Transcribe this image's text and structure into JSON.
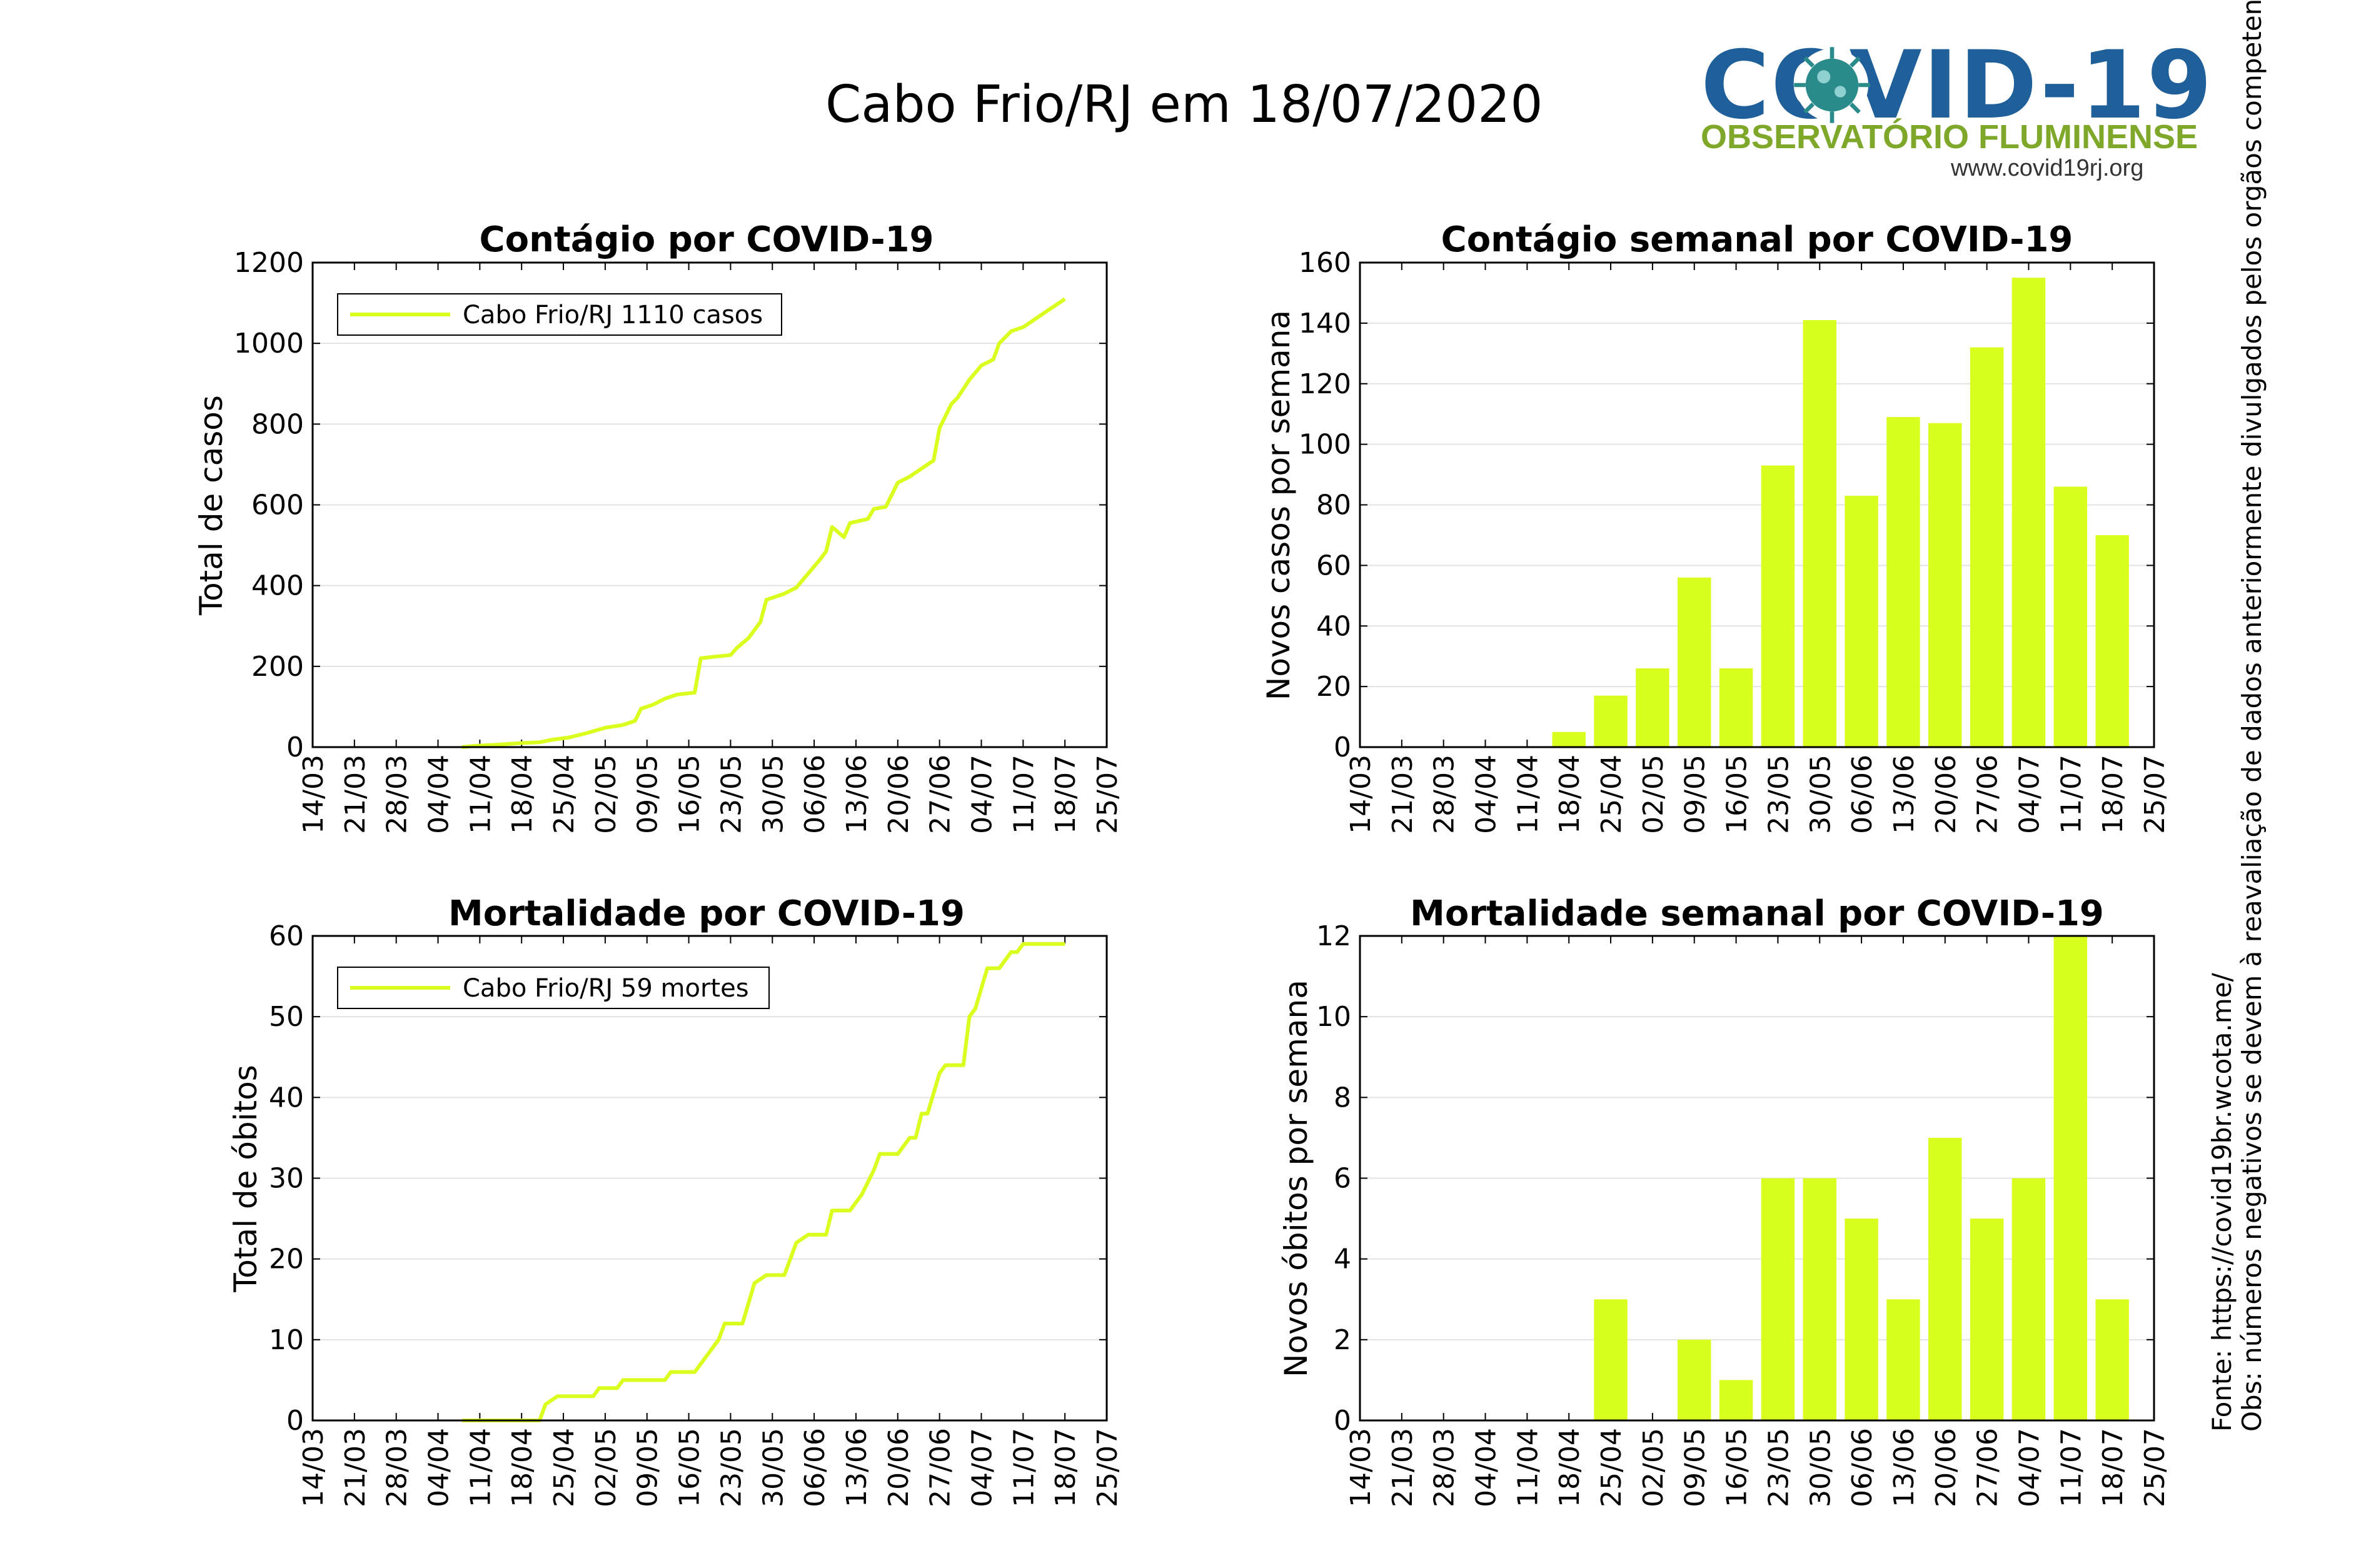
{
  "title": "Cabo Frio/RJ em 18/07/2020",
  "logo": {
    "main": "COVID-19",
    "sub": "OBSERVATÓRIO FLUMINENSE",
    "url": "www.covid19rj.org"
  },
  "side_note": {
    "line1": "Fonte: https://covid19br.wcota.me/",
    "line2": "Obs: números negativos se devem à reavaliação de dados anteriormente divulgados pelos orgãos competentes."
  },
  "colors": {
    "series": "#d9ff1f",
    "grid": "#e3e3e3"
  },
  "chart_data": [
    {
      "id": "cases-total",
      "type": "line",
      "title": "Contágio por COVID-19",
      "ylabel": "Total de casos",
      "xlabel": "",
      "x_ticks": [
        "14/03",
        "21/03",
        "28/03",
        "04/04",
        "11/04",
        "18/04",
        "25/04",
        "02/05",
        "09/05",
        "16/05",
        "23/05",
        "30/05",
        "06/06",
        "13/06",
        "20/06",
        "27/06",
        "04/07",
        "11/07",
        "18/07",
        "25/07"
      ],
      "ylim": [
        0,
        1200
      ],
      "y_ticks": [
        0,
        200,
        400,
        600,
        800,
        1000,
        1200
      ],
      "legend": "Cabo Frio/RJ  1110 casos",
      "legend_position": "top-left",
      "grid": true,
      "series": [
        {
          "name": "Cabo Frio/RJ",
          "points": [
            [
              "08/04",
              0
            ],
            [
              "10/04",
              3
            ],
            [
              "14/04",
              6
            ],
            [
              "18/04",
              10
            ],
            [
              "21/04",
              12
            ],
            [
              "23/04",
              18
            ],
            [
              "26/04",
              24
            ],
            [
              "29/04",
              35
            ],
            [
              "02/05",
              48
            ],
            [
              "05/05",
              55
            ],
            [
              "07/05",
              65
            ],
            [
              "08/05",
              95
            ],
            [
              "10/05",
              105
            ],
            [
              "12/05",
              120
            ],
            [
              "14/05",
              130
            ],
            [
              "17/05",
              135
            ],
            [
              "18/05",
              220
            ],
            [
              "21/05",
              225
            ],
            [
              "23/05",
              228
            ],
            [
              "24/05",
              245
            ],
            [
              "26/05",
              270
            ],
            [
              "28/05",
              310
            ],
            [
              "29/05",
              365
            ],
            [
              "01/06",
              380
            ],
            [
              "03/06",
              395
            ],
            [
              "05/06",
              430
            ],
            [
              "07/06",
              465
            ],
            [
              "08/06",
              485
            ],
            [
              "09/06",
              545
            ],
            [
              "11/06",
              520
            ],
            [
              "12/06",
              555
            ],
            [
              "15/06",
              565
            ],
            [
              "16/06",
              590
            ],
            [
              "18/06",
              595
            ],
            [
              "20/06",
              655
            ],
            [
              "22/06",
              670
            ],
            [
              "24/06",
              690
            ],
            [
              "26/06",
              710
            ],
            [
              "27/06",
              790
            ],
            [
              "29/06",
              850
            ],
            [
              "30/06",
              865
            ],
            [
              "02/07",
              910
            ],
            [
              "04/07",
              945
            ],
            [
              "06/07",
              960
            ],
            [
              "07/07",
              1000
            ],
            [
              "09/07",
              1030
            ],
            [
              "11/07",
              1040
            ],
            [
              "13/07",
              1060
            ],
            [
              "15/07",
              1080
            ],
            [
              "17/07",
              1100
            ],
            [
              "18/07",
              1110
            ]
          ]
        }
      ]
    },
    {
      "id": "cases-weekly",
      "type": "bar",
      "title": "Contágio semanal por COVID-19",
      "ylabel": "Novos casos por semana",
      "xlabel": "",
      "categories": [
        "14/03",
        "21/03",
        "28/03",
        "04/04",
        "11/04",
        "18/04",
        "25/04",
        "02/05",
        "09/05",
        "16/05",
        "23/05",
        "30/05",
        "06/06",
        "13/06",
        "20/06",
        "27/06",
        "04/07",
        "11/07",
        "18/07",
        "25/07"
      ],
      "values": [
        0,
        0,
        0,
        0,
        0,
        5,
        17,
        26,
        56,
        26,
        93,
        141,
        83,
        109,
        107,
        132,
        155,
        86,
        70,
        null
      ],
      "ylim": [
        0,
        160
      ],
      "y_ticks": [
        0,
        20,
        40,
        60,
        80,
        100,
        120,
        140,
        160
      ],
      "grid": true
    },
    {
      "id": "deaths-total",
      "type": "line",
      "title": "Mortalidade por COVID-19",
      "ylabel": "Total de óbitos",
      "xlabel": "",
      "x_ticks": [
        "14/03",
        "21/03",
        "28/03",
        "04/04",
        "11/04",
        "18/04",
        "25/04",
        "02/05",
        "09/05",
        "16/05",
        "23/05",
        "30/05",
        "06/06",
        "13/06",
        "20/06",
        "27/06",
        "04/07",
        "11/07",
        "18/07",
        "25/07"
      ],
      "ylim": [
        0,
        60
      ],
      "y_ticks": [
        0,
        10,
        20,
        30,
        40,
        50,
        60
      ],
      "legend": "Cabo Frio/RJ  59 mortes",
      "legend_position": "top-left",
      "grid": true,
      "series": [
        {
          "name": "Cabo Frio/RJ",
          "points": [
            [
              "08/04",
              0
            ],
            [
              "21/04",
              0
            ],
            [
              "22/04",
              2
            ],
            [
              "24/04",
              3
            ],
            [
              "30/04",
              3
            ],
            [
              "01/05",
              4
            ],
            [
              "04/05",
              4
            ],
            [
              "05/05",
              5
            ],
            [
              "12/05",
              5
            ],
            [
              "13/05",
              6
            ],
            [
              "17/05",
              6
            ],
            [
              "18/05",
              7
            ],
            [
              "21/05",
              10
            ],
            [
              "22/05",
              12
            ],
            [
              "25/05",
              12
            ],
            [
              "27/05",
              17
            ],
            [
              "29/05",
              18
            ],
            [
              "01/06",
              18
            ],
            [
              "03/06",
              22
            ],
            [
              "05/06",
              23
            ],
            [
              "08/06",
              23
            ],
            [
              "09/06",
              26
            ],
            [
              "12/06",
              26
            ],
            [
              "14/06",
              28
            ],
            [
              "16/06",
              31
            ],
            [
              "17/06",
              33
            ],
            [
              "20/06",
              33
            ],
            [
              "22/06",
              35
            ],
            [
              "23/06",
              35
            ],
            [
              "24/06",
              38
            ],
            [
              "25/06",
              38
            ],
            [
              "27/06",
              43
            ],
            [
              "28/06",
              44
            ],
            [
              "01/07",
              44
            ],
            [
              "02/07",
              50
            ],
            [
              "03/07",
              51
            ],
            [
              "05/07",
              56
            ],
            [
              "07/07",
              56
            ],
            [
              "09/07",
              58
            ],
            [
              "10/07",
              58
            ],
            [
              "11/07",
              59
            ],
            [
              "18/07",
              59
            ]
          ]
        }
      ]
    },
    {
      "id": "deaths-weekly",
      "type": "bar",
      "title": "Mortalidade semanal por COVID-19",
      "ylabel": "Novos óbitos por semana",
      "xlabel": "",
      "categories": [
        "14/03",
        "21/03",
        "28/03",
        "04/04",
        "11/04",
        "18/04",
        "25/04",
        "02/05",
        "09/05",
        "16/05",
        "23/05",
        "30/05",
        "06/06",
        "13/06",
        "20/06",
        "27/06",
        "04/07",
        "11/07",
        "18/07",
        "25/07"
      ],
      "values": [
        0,
        0,
        0,
        0,
        0,
        0,
        3,
        0,
        2,
        1,
        6,
        6,
        5,
        3,
        7,
        5,
        6,
        12,
        3,
        null
      ],
      "ylim": [
        0,
        12
      ],
      "y_ticks": [
        0,
        2,
        4,
        6,
        8,
        10,
        12
      ],
      "grid": true
    }
  ]
}
